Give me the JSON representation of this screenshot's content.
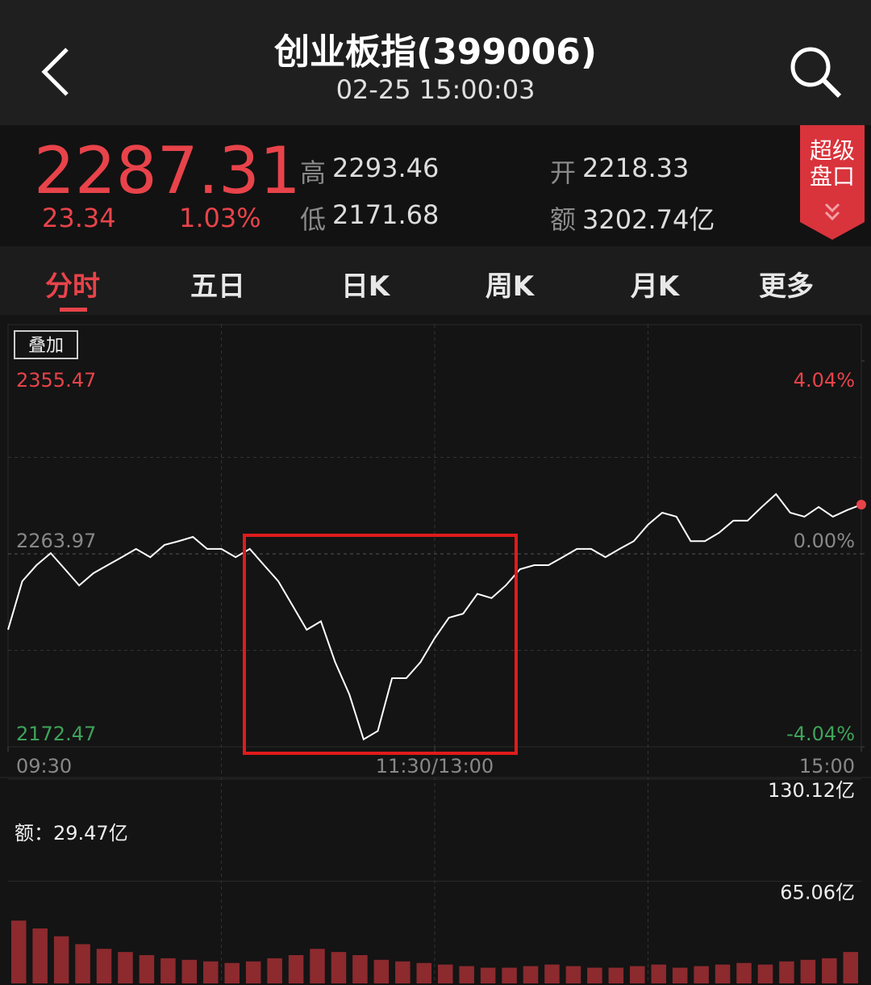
{
  "header": {
    "title": "创业板指(399006)",
    "time": "02-25 15:00:03"
  },
  "quote": {
    "price": "2287.31",
    "change": "23.34",
    "change_pct": "1.03%",
    "high_label": "高",
    "high": "2293.46",
    "low_label": "低",
    "low": "2171.68",
    "open_label": "开",
    "open": "2218.33",
    "amount_label": "额",
    "amount": "3202.74亿",
    "badge": "超级盘口"
  },
  "tabs": [
    "分时",
    "五日",
    "日K",
    "周K",
    "月K",
    "更多"
  ],
  "overlay_button": "叠加",
  "chart_data": [
    {
      "type": "line",
      "color": "#ffffff",
      "x": [
        0,
        4,
        8,
        12,
        16,
        20,
        24,
        28,
        32,
        36,
        40,
        44,
        48,
        52,
        56,
        60,
        64,
        68,
        72,
        76,
        80,
        84,
        88,
        92,
        96,
        100,
        104,
        108,
        112,
        116,
        120,
        124,
        128,
        132,
        136,
        140,
        144,
        148,
        152,
        156,
        160,
        164,
        168,
        172,
        176,
        180,
        184,
        188,
        192,
        196,
        200,
        204,
        208,
        212,
        216,
        220,
        224,
        228,
        232,
        236,
        240
      ],
      "values": [
        2228,
        2251,
        2258.6,
        2264.3,
        2256.7,
        2249,
        2254.8,
        2258.6,
        2262.4,
        2266.3,
        2262.4,
        2268.2,
        2270,
        2272,
        2266.3,
        2266.3,
        2262.4,
        2266.3,
        2258.6,
        2251,
        2239.5,
        2228,
        2232,
        2212.6,
        2197.3,
        2176,
        2180,
        2205,
        2205,
        2212.6,
        2224,
        2233.7,
        2235.6,
        2245,
        2243,
        2249,
        2256.7,
        2258.6,
        2258.6,
        2262.4,
        2266.3,
        2266.3,
        2262.4,
        2266.3,
        2270,
        2277.8,
        2283.5,
        2281.6,
        2270,
        2270,
        2274,
        2279.7,
        2279.7,
        2286.2,
        2292.3,
        2283.5,
        2281.6,
        2286.2,
        2281.6,
        2284.7,
        2287.31
      ],
      "xlim": [
        0,
        240
      ],
      "xticks": [
        {
          "value": 0,
          "label": "09:30"
        },
        {
          "value": 120,
          "label": "11:30/13:00"
        },
        {
          "value": 240,
          "label": "15:00"
        }
      ],
      "ylim": [
        2172.47,
        2355.47
      ],
      "yticks": [
        2172.47,
        2263.97,
        2355.47
      ],
      "y2lim": [
        -4.04,
        4.04
      ],
      "y2ticks": [
        {
          "value": -4.04,
          "label": "-4.04%"
        },
        {
          "value": 0,
          "label": "0.00%"
        },
        {
          "value": 4.04,
          "label": "4.04%"
        }
      ]
    },
    {
      "type": "bar",
      "color": "#8c2a2e",
      "label": "额：29.47亿",
      "values": [
        40,
        35,
        30,
        25,
        22,
        20,
        18,
        16,
        15,
        14,
        13,
        14,
        16,
        18,
        22,
        20,
        18,
        15,
        14,
        13,
        12,
        11,
        10,
        10,
        11,
        12,
        11,
        10,
        10,
        11,
        12,
        10,
        11,
        12,
        13,
        12,
        14,
        15,
        16,
        20
      ],
      "ylim": [
        0,
        130.12
      ],
      "yticks": [
        {
          "value": 65.06,
          "label": "65.06亿"
        },
        {
          "value": 130.12,
          "label": "130.12亿"
        }
      ]
    }
  ]
}
